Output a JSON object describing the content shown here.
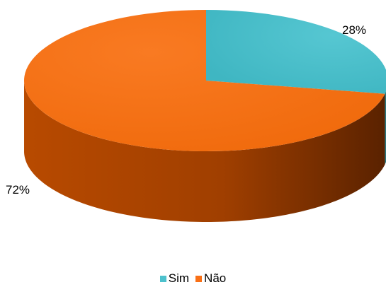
{
  "chart_data": {
    "type": "pie",
    "style": "3d",
    "slices": [
      {
        "label": "Sim",
        "value": 28,
        "data_label": "28%",
        "color": "#4dc1cd"
      },
      {
        "label": "Não",
        "value": 72,
        "data_label": "72%",
        "color": "#f97016"
      }
    ],
    "legend": {
      "placement": "bottom"
    }
  }
}
